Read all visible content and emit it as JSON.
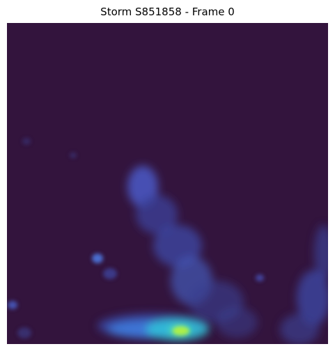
{
  "title": "Storm S851858 - Frame 0",
  "colors": {
    "background": "#33143d",
    "dim_blue": "#3a3f8f",
    "mid_blue": "#4a6ad0",
    "bright_blue": "#3f8fe8",
    "cyan": "#34d3d6",
    "green": "#3ff08a",
    "yellow": "#b6f23c"
  }
}
